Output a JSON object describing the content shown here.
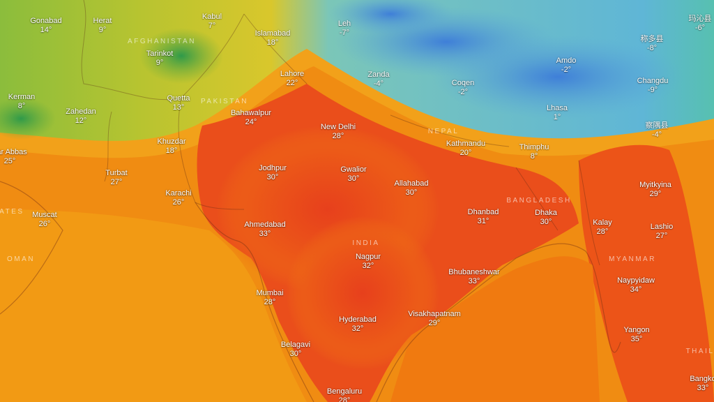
{
  "map": {
    "colors": {
      "hot": "#e8461a",
      "warm": "#f39a12",
      "mild": "#d7c32a",
      "cool": "#6fbf3a",
      "cold": "#67c2c8",
      "freezing": "#4d8fd6"
    },
    "cities": [
      {
        "id": "gonabad",
        "name": "Gonabad",
        "temp": "14°"
      },
      {
        "id": "herat",
        "name": "Herat",
        "temp": "9°"
      },
      {
        "id": "kabul",
        "name": "Kabul",
        "temp": "7°"
      },
      {
        "id": "islamabad",
        "name": "Islamabad",
        "temp": "18°"
      },
      {
        "id": "tarinkot",
        "name": "Tarinkot",
        "temp": "9°"
      },
      {
        "id": "kerman",
        "name": "Kerman",
        "temp": "8°"
      },
      {
        "id": "zahedan",
        "name": "Zahedan",
        "temp": "12°"
      },
      {
        "id": "quetta",
        "name": "Quetta",
        "temp": "13°"
      },
      {
        "id": "lahore",
        "name": "Lahore",
        "temp": "22°"
      },
      {
        "id": "bahawalpur",
        "name": "Bahawalpur",
        "temp": "24°"
      },
      {
        "id": "khuzdar",
        "name": "Khuzdar",
        "temp": "18°"
      },
      {
        "id": "bandar-abbas",
        "name": "dar Abbas",
        "temp": "25°"
      },
      {
        "id": "turbat",
        "name": "Turbat",
        "temp": "27°"
      },
      {
        "id": "karachi",
        "name": "Karachi",
        "temp": "26°"
      },
      {
        "id": "muscat",
        "name": "Muscat",
        "temp": "26°"
      },
      {
        "id": "jodhpur",
        "name": "Jodhpur",
        "temp": "30°"
      },
      {
        "id": "gwalior",
        "name": "Gwalior",
        "temp": "30°"
      },
      {
        "id": "new-delhi",
        "name": "New Delhi",
        "temp": "28°"
      },
      {
        "id": "allahabad",
        "name": "Allahabad",
        "temp": "30°"
      },
      {
        "id": "ahmedabad",
        "name": "Ahmedabad",
        "temp": "33°"
      },
      {
        "id": "nagpur",
        "name": "Nagpur",
        "temp": "32°"
      },
      {
        "id": "mumbai",
        "name": "Mumbai",
        "temp": "28°"
      },
      {
        "id": "hyderabad",
        "name": "Hyderabad",
        "temp": "32°"
      },
      {
        "id": "belagavi",
        "name": "Belagavi",
        "temp": "30°"
      },
      {
        "id": "bengaluru",
        "name": "Bengaluru",
        "temp": "28°"
      },
      {
        "id": "visakhapatnam",
        "name": "Visakhapatnam",
        "temp": "29°"
      },
      {
        "id": "bhubaneshwar",
        "name": "Bhubaneshwar",
        "temp": "33°"
      },
      {
        "id": "dhanbad",
        "name": "Dhanbad",
        "temp": "31°"
      },
      {
        "id": "kathmandu",
        "name": "Kathmandu",
        "temp": "20°"
      },
      {
        "id": "thimphu",
        "name": "Thimphu",
        "temp": "8°"
      },
      {
        "id": "dhaka",
        "name": "Dhaka",
        "temp": "30°"
      },
      {
        "id": "leh",
        "name": "Leh",
        "temp": "-7°"
      },
      {
        "id": "zanda",
        "name": "Zanda",
        "temp": "-4°"
      },
      {
        "id": "coqen",
        "name": "Coqen",
        "temp": "-2°"
      },
      {
        "id": "lhasa",
        "name": "Lhasa",
        "temp": "1°"
      },
      {
        "id": "amdo",
        "name": "Amdo",
        "temp": "-2°"
      },
      {
        "id": "changdu",
        "name": "Changdu",
        "temp": "-9°"
      },
      {
        "id": "chengduo",
        "name": "称多县",
        "temp": "-8°"
      },
      {
        "id": "maqin",
        "name": "玛沁县",
        "temp": "-6°"
      },
      {
        "id": "chayu",
        "name": "察隅县",
        "temp": "-4°"
      },
      {
        "id": "myitkyina",
        "name": "Myitkyina",
        "temp": "29°"
      },
      {
        "id": "kalay",
        "name": "Kalay",
        "temp": "28°"
      },
      {
        "id": "lashio",
        "name": "Lashio",
        "temp": "27°"
      },
      {
        "id": "naypyidaw",
        "name": "Naypyidaw",
        "temp": "34°"
      },
      {
        "id": "yangon",
        "name": "Yangon",
        "temp": "35°"
      },
      {
        "id": "bangkok",
        "name": "Bangko",
        "temp": "33°"
      }
    ],
    "countries": [
      {
        "id": "afghanistan",
        "name": "AFGHANISTAN"
      },
      {
        "id": "pakistan",
        "name": "PAKISTAN"
      },
      {
        "id": "india",
        "name": "INDIA"
      },
      {
        "id": "nepal",
        "name": "NEPAL"
      },
      {
        "id": "bangladesh",
        "name": "BANGLADESH"
      },
      {
        "id": "myanmar",
        "name": "MYANMAR"
      },
      {
        "id": "oman",
        "name": "OMAN"
      },
      {
        "id": "emirates",
        "name": "RATES"
      },
      {
        "id": "thailand",
        "name": "THAIL"
      }
    ]
  }
}
